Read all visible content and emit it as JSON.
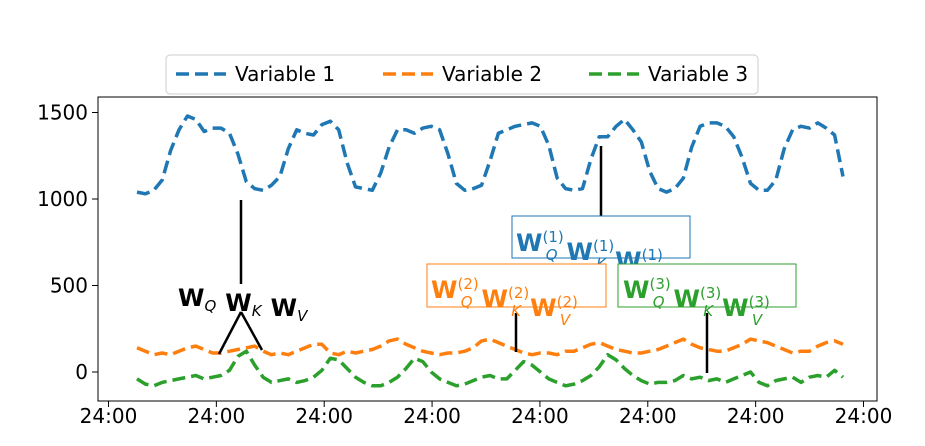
{
  "chart_data": {
    "type": "line",
    "title": "",
    "xlabel": "",
    "ylabel": "",
    "ylim": [
      -150,
      1600
    ],
    "y_ticks": [
      0,
      500,
      1000,
      1500
    ],
    "y_tick_labels": [
      "0",
      "500",
      "1000",
      "1500"
    ],
    "x_tick_labels": [
      "24:00",
      "24:00",
      "24:00",
      "24:00",
      "24:00",
      "24:00",
      "24:00",
      "24:00"
    ],
    "grid": false,
    "legend_position": "top-center",
    "legend_entries": [
      "Variable 1",
      "Variable 2",
      "Variable 3"
    ],
    "series": [
      {
        "name": "Variable 1",
        "color": "#1f77b4",
        "line_style": "dashed",
        "values": [
          1040,
          1030,
          1050,
          1110,
          1280,
          1400,
          1480,
          1460,
          1390,
          1410,
          1410,
          1380,
          1260,
          1100,
          1060,
          1050,
          1080,
          1130,
          1290,
          1400,
          1380,
          1370,
          1430,
          1450,
          1400,
          1210,
          1070,
          1060,
          1050,
          1150,
          1300,
          1400,
          1400,
          1380,
          1410,
          1420,
          1400,
          1260,
          1090,
          1050,
          1060,
          1080,
          1220,
          1380,
          1400,
          1420,
          1430,
          1440,
          1420,
          1310,
          1120,
          1060,
          1050,
          1060,
          1230,
          1360,
          1360,
          1420,
          1460,
          1400,
          1330,
          1160,
          1060,
          1040,
          1060,
          1120,
          1300,
          1420,
          1440,
          1440,
          1420,
          1360,
          1240,
          1090,
          1050,
          1050,
          1110,
          1290,
          1400,
          1420,
          1410,
          1440,
          1410,
          1370,
          1130
        ]
      },
      {
        "name": "Variable 2",
        "color": "#ff7f0e",
        "line_style": "dashed",
        "values": [
          140,
          120,
          100,
          110,
          100,
          120,
          140,
          150,
          130,
          110,
          110,
          120,
          130,
          140,
          150,
          120,
          100,
          110,
          100,
          120,
          140,
          160,
          160,
          110,
          100,
          120,
          110,
          120,
          130,
          150,
          180,
          190,
          160,
          140,
          120,
          110,
          100,
          110,
          110,
          120,
          140,
          180,
          190,
          170,
          150,
          130,
          110,
          100,
          110,
          110,
          100,
          120,
          120,
          140,
          160,
          170,
          150,
          130,
          120,
          110,
          110,
          120,
          130,
          150,
          170,
          190,
          160,
          140,
          130,
          120,
          120,
          140,
          160,
          190,
          180,
          170,
          150,
          130,
          110,
          120,
          120,
          150,
          170,
          180,
          160
        ]
      },
      {
        "name": "Variable 3",
        "color": "#2ca02c",
        "line_style": "dashed",
        "values": [
          -40,
          -70,
          -80,
          -60,
          -50,
          -40,
          -30,
          -20,
          -40,
          -30,
          -20,
          10,
          90,
          120,
          40,
          -30,
          -60,
          -50,
          -40,
          -60,
          -50,
          -30,
          10,
          80,
          70,
          20,
          -30,
          -60,
          -80,
          -80,
          -60,
          -30,
          20,
          80,
          60,
          0,
          -40,
          -60,
          -80,
          -70,
          -50,
          -30,
          -20,
          -40,
          -40,
          10,
          60,
          40,
          0,
          -40,
          -60,
          -80,
          -70,
          -50,
          -20,
          30,
          100,
          70,
          20,
          -20,
          -50,
          -70,
          -60,
          -60,
          -50,
          -20,
          -40,
          -30,
          -50,
          -40,
          -60,
          -40,
          -20,
          0,
          -60,
          -80,
          -50,
          -40,
          -30,
          -60,
          -30,
          -20,
          -30,
          10,
          -30
        ]
      }
    ],
    "annotations": [
      {
        "id": "shared",
        "color": "#000000",
        "labels": [
          {
            "base": "W",
            "sub": "Q",
            "sup": ""
          },
          {
            "base": "W",
            "sub": "K",
            "sup": ""
          },
          {
            "base": "W",
            "sub": "V",
            "sup": ""
          }
        ]
      },
      {
        "id": "var1",
        "color": "#1f77b4",
        "labels": [
          {
            "base": "W",
            "sub": "Q",
            "sup": "(1)"
          },
          {
            "base": "W",
            "sub": "K",
            "sup": "(1)"
          },
          {
            "base": "W",
            "sub": "V",
            "sup": "(1)"
          }
        ]
      },
      {
        "id": "var2",
        "color": "#ff7f0e",
        "labels": [
          {
            "base": "W",
            "sub": "Q",
            "sup": "(2)"
          },
          {
            "base": "W",
            "sub": "K",
            "sup": "(2)"
          },
          {
            "base": "W",
            "sub": "V",
            "sup": "(2)"
          }
        ]
      },
      {
        "id": "var3",
        "color": "#2ca02c",
        "labels": [
          {
            "base": "W",
            "sub": "Q",
            "sup": "(3)"
          },
          {
            "base": "W",
            "sub": "K",
            "sup": "(3)"
          },
          {
            "base": "W",
            "sub": "V",
            "sup": "(3)"
          }
        ]
      }
    ]
  }
}
